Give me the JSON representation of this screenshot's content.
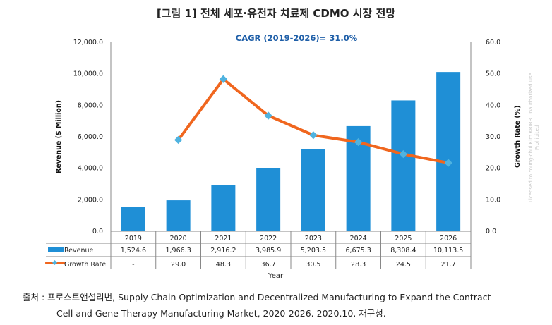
{
  "title": "[그림 1] 전체 세포·유전자 치료제 CDMO 시장 전망",
  "annotation": "CAGR (2019-2026)= 31.0%",
  "watermark": "Licensed to Young-chul Kim KRIBB Unauthorized Use Prohibited",
  "caption": {
    "label": "출처 : ",
    "text": "프로스트앤설리번, Supply Chain Optimization and Decentralized Manufacturing to Expand the Contract",
    "text2": "Cell and Gene Therapy Manufacturing Market, 2020-2026. 2020.10. 재구성."
  },
  "chart_data": {
    "type": "bar+line",
    "categories": [
      "2019",
      "2020",
      "2021",
      "2022",
      "2023",
      "2024",
      "2025",
      "2026"
    ],
    "xlabel": "Year",
    "ylabel": "Revenue ($ Million)",
    "y2label": "Growth Rate (%)",
    "ylim": [
      0,
      12000
    ],
    "y2lim": [
      0,
      60
    ],
    "yticks": [
      "0.0",
      "2,000.0",
      "4,000.0",
      "6,000.0",
      "8,000.0",
      "10,000.0",
      "12,000.0"
    ],
    "y2ticks": [
      "0.0",
      "10.0",
      "20.0",
      "30.0",
      "40.0",
      "50.0",
      "60.0"
    ],
    "grid": false,
    "series": [
      {
        "name": "Revenue",
        "type": "bar",
        "color": "#1f8fd6",
        "values": [
          1524.6,
          1966.3,
          2916.2,
          3985.9,
          5203.5,
          6675.3,
          8308.4,
          10113.5
        ],
        "labels": [
          "1,524.6",
          "1,966.3",
          "2,916.2",
          "3,985.9",
          "5,203.5",
          "6,675.3",
          "8,308.4",
          "10,113.5"
        ]
      },
      {
        "name": "Growth Rate",
        "type": "line",
        "axis": "right",
        "color": "#f0661e",
        "marker_color": "#4fb3e0",
        "values": [
          null,
          29.0,
          48.3,
          36.7,
          30.5,
          28.3,
          24.5,
          21.7
        ],
        "labels": [
          "-",
          "29.0",
          "48.3",
          "36.7",
          "30.5",
          "28.3",
          "24.5",
          "21.7"
        ]
      }
    ]
  }
}
